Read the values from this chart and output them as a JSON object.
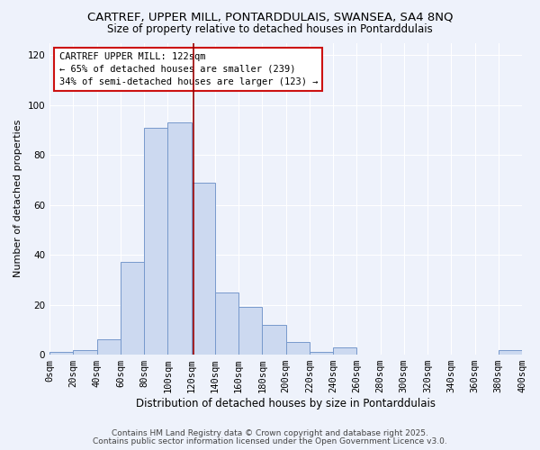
{
  "title": "CARTREF, UPPER MILL, PONTARDDULAIS, SWANSEA, SA4 8NQ",
  "subtitle": "Size of property relative to detached houses in Pontarddulais",
  "xlabel": "Distribution of detached houses by size in Pontarddulais",
  "ylabel": "Number of detached properties",
  "bin_edges": [
    0,
    20,
    40,
    60,
    80,
    100,
    120,
    140,
    160,
    180,
    200,
    220,
    240,
    260,
    280,
    300,
    320,
    340,
    360,
    380,
    400
  ],
  "bar_heights": [
    1,
    2,
    6,
    37,
    91,
    93,
    69,
    25,
    19,
    12,
    5,
    1,
    3,
    0,
    0,
    0,
    0,
    0,
    0,
    2
  ],
  "bar_fill_color": "#ccd9f0",
  "bar_edge_color": "#7799cc",
  "reference_line_x": 122,
  "reference_line_color": "#990000",
  "ylim": [
    0,
    125
  ],
  "yticks": [
    0,
    20,
    40,
    60,
    80,
    100,
    120
  ],
  "background_color": "#eef2fb",
  "grid_color": "#ffffff",
  "annotation_title": "CARTREF UPPER MILL: 122sqm",
  "annotation_line1": "← 65% of detached houses are smaller (239)",
  "annotation_line2": "34% of semi-detached houses are larger (123) →",
  "footer_line1": "Contains HM Land Registry data © Crown copyright and database right 2025.",
  "footer_line2": "Contains public sector information licensed under the Open Government Licence v3.0.",
  "title_fontsize": 9.5,
  "subtitle_fontsize": 8.5,
  "xlabel_fontsize": 8.5,
  "ylabel_fontsize": 8,
  "tick_fontsize": 7.5,
  "annot_fontsize": 7.5,
  "footer_fontsize": 6.5
}
